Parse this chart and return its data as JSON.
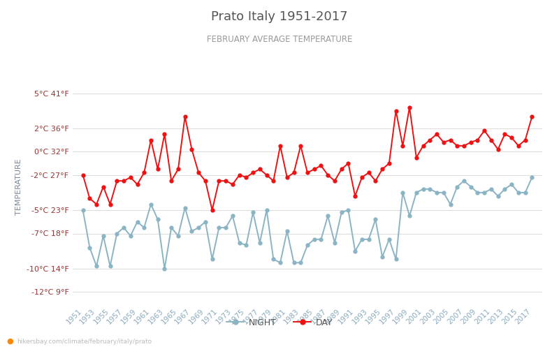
{
  "title": "Prato Italy 1951-2017",
  "subtitle": "FEBRUARY AVERAGE TEMPERATURE",
  "ylabel": "TEMPERATURE",
  "ylabel_color": "#7a8899",
  "title_color": "#555555",
  "subtitle_color": "#999999",
  "tick_label_color": "#993333",
  "xtick_label_color": "#8aaabb",
  "background_color": "#ffffff",
  "grid_color": "#dddddd",
  "watermark": "hikersbay.com/climate/february/italy/prato",
  "years": [
    1951,
    1952,
    1953,
    1954,
    1955,
    1956,
    1957,
    1958,
    1959,
    1960,
    1961,
    1962,
    1963,
    1964,
    1965,
    1966,
    1967,
    1968,
    1969,
    1970,
    1971,
    1972,
    1973,
    1974,
    1975,
    1976,
    1977,
    1978,
    1979,
    1980,
    1981,
    1982,
    1983,
    1984,
    1985,
    1986,
    1987,
    1988,
    1989,
    1990,
    1991,
    1992,
    1993,
    1994,
    1995,
    1996,
    1997,
    1998,
    1999,
    2000,
    2001,
    2002,
    2003,
    2004,
    2005,
    2006,
    2007,
    2008,
    2009,
    2010,
    2011,
    2012,
    2013,
    2014,
    2015,
    2016,
    2017
  ],
  "night": [
    -5.0,
    -8.2,
    -9.8,
    -7.2,
    -9.8,
    -7.0,
    -6.5,
    -7.2,
    -6.0,
    -6.5,
    -4.5,
    -5.8,
    -10.0,
    -6.5,
    -7.2,
    -4.8,
    -6.8,
    -6.5,
    -6.0,
    -9.2,
    -6.5,
    -6.5,
    -5.5,
    -7.8,
    -8.0,
    -5.2,
    -7.8,
    -5.0,
    -9.2,
    -9.5,
    -6.8,
    -9.5,
    -9.5,
    -8.0,
    -7.5,
    -7.5,
    -5.5,
    -7.8,
    -5.2,
    -5.0,
    -8.5,
    -7.5,
    -7.5,
    -5.8,
    -9.0,
    -7.5,
    -9.2,
    -3.5,
    -5.5,
    -3.5,
    -3.2,
    -3.2,
    -3.5,
    -3.5,
    -4.5,
    -3.0,
    -2.5,
    -3.0,
    -3.5,
    -3.5,
    -3.2,
    -3.8,
    -3.2,
    -2.8,
    -3.5,
    -3.5,
    -2.2
  ],
  "day": [
    -2.0,
    -4.0,
    -4.5,
    -3.0,
    -4.5,
    -2.5,
    -2.5,
    -2.2,
    -2.8,
    -1.8,
    1.0,
    -1.5,
    1.5,
    -2.5,
    -1.5,
    3.0,
    0.2,
    -1.8,
    -2.5,
    -5.0,
    -2.5,
    -2.5,
    -2.8,
    -2.0,
    -2.2,
    -1.8,
    -1.5,
    -2.0,
    -2.5,
    0.5,
    -2.2,
    -1.8,
    0.5,
    -1.8,
    -1.5,
    -1.2,
    -2.0,
    -2.5,
    -1.5,
    -1.0,
    -3.8,
    -2.2,
    -1.8,
    -2.5,
    -1.5,
    -1.0,
    3.5,
    0.5,
    3.8,
    -0.5,
    0.5,
    1.0,
    1.5,
    0.8,
    1.0,
    0.5,
    0.5,
    0.8,
    1.0,
    1.8,
    1.0,
    0.2,
    1.5,
    1.2,
    0.5,
    1.0,
    3.0
  ],
  "ylim_min": -13,
  "ylim_max": 7,
  "yticks_celsius": [
    5,
    2,
    0,
    -2,
    -5,
    -7,
    -10,
    -12
  ],
  "yticks_fahrenheit": [
    41,
    36,
    32,
    27,
    23,
    18,
    14,
    9
  ],
  "night_color": "#8ab4c4",
  "day_color": "#ee1111",
  "line_width": 1.4,
  "marker_size": 3.5,
  "legend_night": "NIGHT",
  "legend_day": "DAY"
}
